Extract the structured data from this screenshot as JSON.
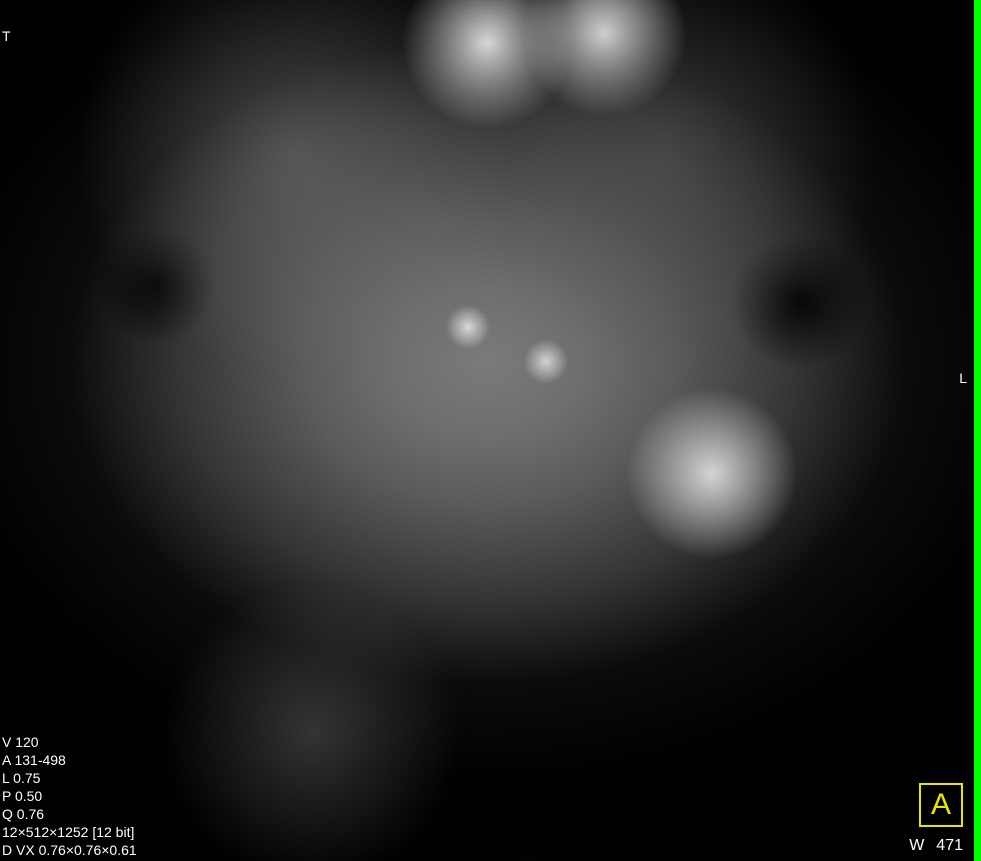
{
  "viewer": {
    "right_edge_indicator_color": "#00ff00",
    "orientation_marker": {
      "letter": "A",
      "border_color": "#e6e600",
      "text_color": "#e6e600"
    },
    "window_level": {
      "label": "W",
      "value": "471"
    }
  },
  "overlays": {
    "top_left_marker": "T",
    "right_mid_marker": "L",
    "bottom_left_lines": {
      "l1": "V 120",
      "l2": "A 131-498",
      "l3": "L 0.75",
      "l4": "P 0.50",
      "l5": "Q 0.76",
      "l6": "12×512×1252 [12 bit]",
      "l7": "D VX 0.76×0.76×0.61"
    }
  },
  "colors": {
    "background": "#000000",
    "overlay_text": "#ffffff"
  }
}
